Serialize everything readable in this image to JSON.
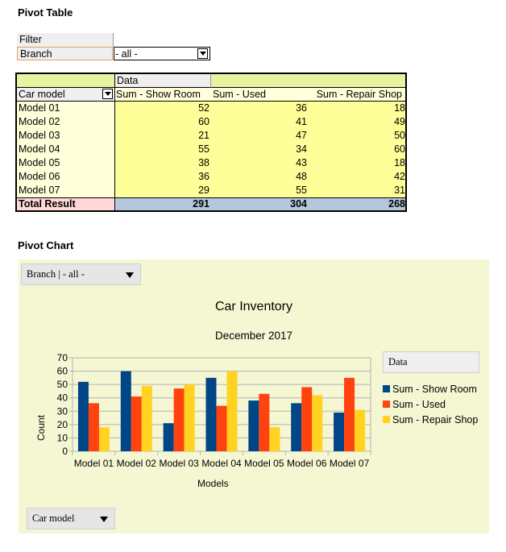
{
  "pivot_table": {
    "heading": "Pivot Table",
    "filter": {
      "label": "Filter",
      "field": "Branch",
      "value": "- all -"
    },
    "data_label": "Data",
    "row_field": "Car model",
    "columns": [
      "Sum - Show Room",
      "Sum - Used",
      "Sum - Repair Shop"
    ],
    "rows": [
      {
        "label": "Model 01",
        "values": [
          52,
          36,
          18
        ]
      },
      {
        "label": "Model 02",
        "values": [
          60,
          41,
          49
        ]
      },
      {
        "label": "Model 03",
        "values": [
          21,
          47,
          50
        ]
      },
      {
        "label": "Model 04",
        "values": [
          55,
          34,
          60
        ]
      },
      {
        "label": "Model 05",
        "values": [
          38,
          43,
          18
        ]
      },
      {
        "label": "Model 06",
        "values": [
          36,
          48,
          42
        ]
      },
      {
        "label": "Model 07",
        "values": [
          29,
          55,
          31
        ]
      }
    ],
    "total": {
      "label": "Total Result",
      "values": [
        291,
        304,
        268
      ]
    }
  },
  "pivot_chart": {
    "heading": "Pivot Chart",
    "page_field_button": "Branch | - all -",
    "row_field_button": "Car model",
    "legend_title": "Data"
  },
  "chart_data": {
    "type": "bar",
    "title": "Car Inventory",
    "subtitle": "December 2017",
    "xlabel": "Models",
    "ylabel": "Count",
    "ylim": [
      0,
      70
    ],
    "yticks": [
      0,
      10,
      20,
      30,
      40,
      50,
      60,
      70
    ],
    "grid": true,
    "legend_position": "right",
    "categories": [
      "Model 01",
      "Model 02",
      "Model 03",
      "Model 04",
      "Model 05",
      "Model 06",
      "Model 07"
    ],
    "series": [
      {
        "name": "Sum - Show Room",
        "color": "#004586",
        "values": [
          52,
          60,
          21,
          55,
          38,
          36,
          29
        ]
      },
      {
        "name": "Sum - Used",
        "color": "#ff420e",
        "values": [
          36,
          41,
          47,
          34,
          43,
          48,
          55
        ]
      },
      {
        "name": "Sum - Repair Shop",
        "color": "#ffd320",
        "values": [
          18,
          49,
          50,
          60,
          18,
          42,
          31
        ]
      }
    ]
  },
  "colors": {
    "table_header": "#e8f2a1",
    "row_header_bg": "#ffffd9",
    "data_bg": "#ffff99",
    "total_label_bg": "#ffd7d7",
    "total_values_bg": "#b4c7dc",
    "chart_bg": "#f5f7d3"
  }
}
